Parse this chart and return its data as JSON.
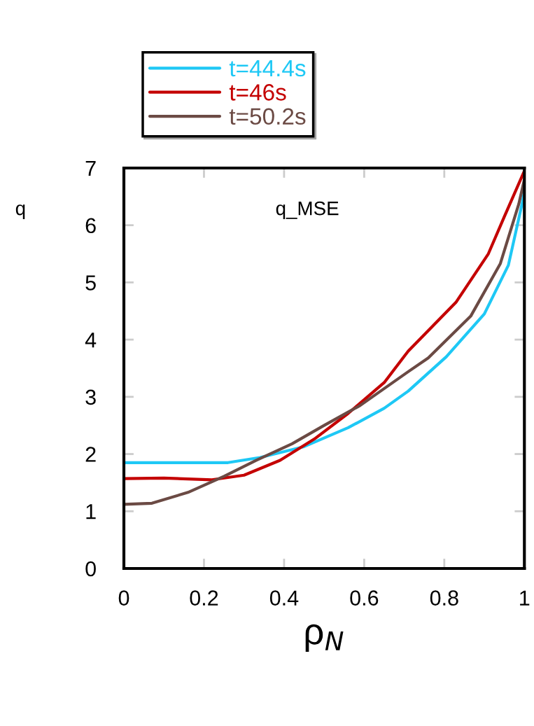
{
  "chart_data": {
    "type": "line",
    "xlabel": "ρ$_{N}$",
    "ylabel": "q",
    "annotations": [
      "q_MSE"
    ],
    "xlim": [
      0,
      1
    ],
    "ylim": [
      0,
      7
    ],
    "xticks": [
      0,
      0.2,
      0.4,
      0.6,
      0.8,
      1
    ],
    "yticks": [
      0,
      1,
      2,
      3,
      4,
      5,
      6,
      7
    ],
    "grid": false,
    "legend": "top",
    "marker": "none",
    "line_style": "solid",
    "series": [
      {
        "name": "t=44.4s",
        "color": "#1ec8f5",
        "x": [
          0,
          0.1,
          0.2,
          0.26,
          0.34,
          0.45,
          0.56,
          0.65,
          0.71,
          0.805,
          0.9,
          0.96,
          0.995,
          1.0
        ],
        "values": [
          1.85,
          1.85,
          1.85,
          1.85,
          1.94,
          2.13,
          2.46,
          2.8,
          3.1,
          3.7,
          4.45,
          5.3,
          6.4,
          6.6
        ]
      },
      {
        "name": "t=46s",
        "color": "#c40000",
        "x": [
          0,
          0.1,
          0.22,
          0.3,
          0.39,
          0.475,
          0.56,
          0.65,
          0.71,
          0.83,
          0.91,
          0.95,
          1.0
        ],
        "values": [
          1.57,
          1.58,
          1.55,
          1.63,
          1.89,
          2.26,
          2.71,
          3.25,
          3.8,
          4.66,
          5.5,
          6.15,
          6.95
        ]
      },
      {
        "name": "t=50.2s",
        "color": "#6b4a44",
        "x": [
          0,
          0.07,
          0.16,
          0.25,
          0.33,
          0.42,
          0.5,
          0.59,
          0.71,
          0.76,
          0.866,
          0.94,
          0.986,
          1.0
        ],
        "values": [
          1.12,
          1.14,
          1.33,
          1.61,
          1.89,
          2.18,
          2.5,
          2.85,
          3.44,
          3.68,
          4.41,
          5.33,
          6.37,
          6.8
        ]
      }
    ]
  }
}
